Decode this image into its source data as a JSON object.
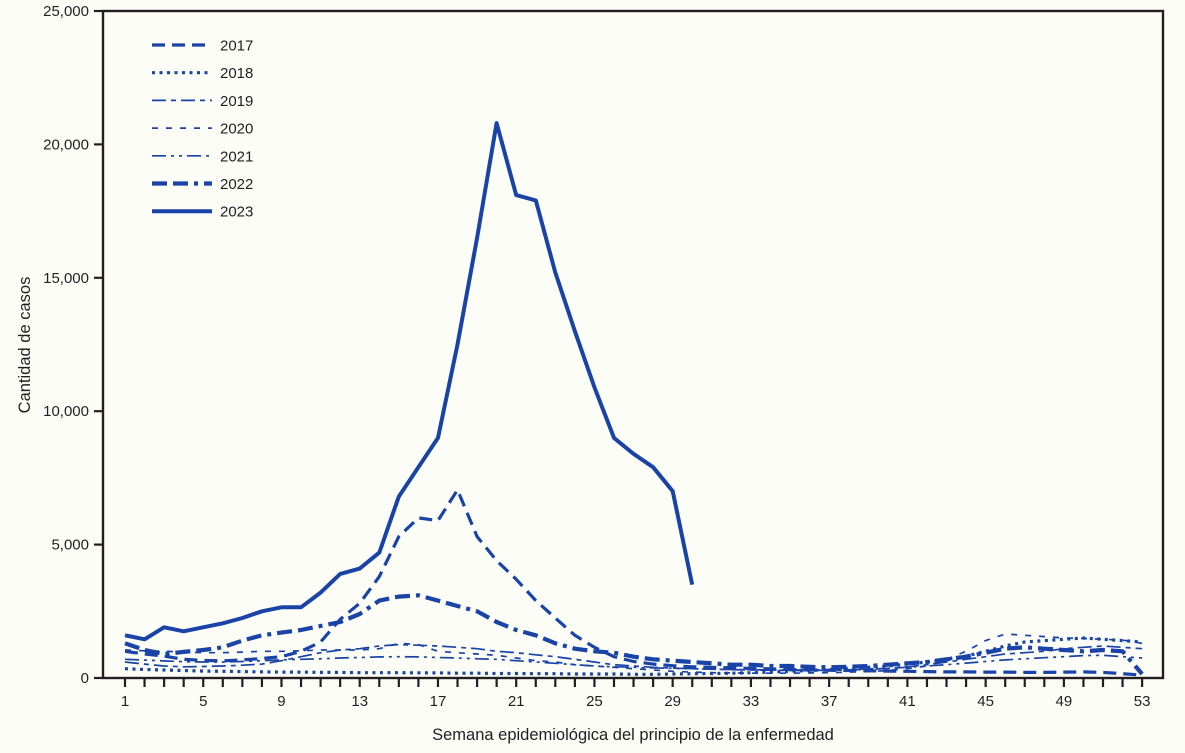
{
  "figure": {
    "background_color": "#fdfdf8",
    "accent_color": "#1a43a8",
    "axis_color": "#231f20"
  },
  "chart_data": {
    "type": "line",
    "title": "",
    "xlabel": "Semana epidemiológica del principio de la enfermedad",
    "ylabel": "Cantidad de casos",
    "grid": false,
    "legend_position": "top-left",
    "xlim": [
      1,
      53
    ],
    "ylim": [
      0,
      25000
    ],
    "x_tick_labels": [
      1,
      5,
      9,
      13,
      17,
      21,
      25,
      29,
      33,
      37,
      41,
      45,
      49,
      53
    ],
    "y_ticks": [
      0,
      5000,
      10000,
      15000,
      20000,
      25000
    ],
    "y_tick_labels": [
      "0",
      "5,000",
      "10,000",
      "15,000",
      "20,000",
      "25,000"
    ],
    "x": [
      1,
      2,
      3,
      4,
      5,
      6,
      7,
      8,
      9,
      10,
      11,
      12,
      13,
      14,
      15,
      16,
      17,
      18,
      19,
      20,
      21,
      22,
      23,
      24,
      25,
      26,
      27,
      28,
      29,
      30,
      31,
      32,
      33,
      34,
      35,
      36,
      37,
      38,
      39,
      40,
      41,
      42,
      43,
      44,
      45,
      46,
      47,
      48,
      49,
      50,
      51,
      52,
      53
    ],
    "line_color": "#1a43a8",
    "series": [
      {
        "name": "2017",
        "dash": "13 7",
        "width": 3.2,
        "values": [
          1000,
          900,
          820,
          700,
          660,
          640,
          680,
          730,
          800,
          1000,
          1350,
          2200,
          2800,
          3800,
          5300,
          6000,
          5900,
          7050,
          5300,
          4400,
          3700,
          2900,
          2250,
          1600,
          1150,
          800,
          620,
          520,
          460,
          420,
          400,
          380,
          360,
          340,
          320,
          300,
          290,
          280,
          270,
          260,
          250,
          240,
          230,
          230,
          220,
          220,
          210,
          210,
          220,
          230,
          210,
          160,
          110
        ]
      },
      {
        "name": "2018",
        "dash": "3 4.5",
        "width": 3.2,
        "values": [
          350,
          320,
          300,
          280,
          260,
          250,
          240,
          230,
          220,
          220,
          210,
          210,
          200,
          200,
          200,
          190,
          190,
          180,
          180,
          170,
          170,
          160,
          160,
          150,
          150,
          150,
          140,
          140,
          150,
          160,
          170,
          180,
          200,
          220,
          250,
          280,
          320,
          360,
          400,
          450,
          520,
          600,
          700,
          820,
          1000,
          1200,
          1350,
          1400,
          1450,
          1500,
          1450,
          1400,
          1350
        ]
      },
      {
        "name": "2019",
        "dash": "14 5 5 5",
        "width": 1.7,
        "values": [
          600,
          520,
          450,
          420,
          430,
          450,
          480,
          520,
          650,
          800,
          950,
          1050,
          1100,
          1200,
          1250,
          1230,
          1200,
          1150,
          1100,
          1000,
          950,
          870,
          800,
          700,
          600,
          500,
          450,
          400,
          370,
          350,
          330,
          310,
          300,
          290,
          280,
          280,
          290,
          300,
          320,
          360,
          420,
          500,
          600,
          700,
          800,
          900,
          950,
          1000,
          1100,
          1150,
          1200,
          1150,
          1100
        ]
      },
      {
        "name": "2020",
        "dash": "6 8",
        "width": 1.7,
        "values": [
          1050,
          1020,
          1000,
          980,
          950,
          950,
          970,
          1000,
          1000,
          1020,
          1050,
          1050,
          1050,
          1100,
          1300,
          1250,
          1000,
          950,
          900,
          850,
          750,
          650,
          600,
          500,
          450,
          400,
          350,
          300,
          250,
          220,
          200,
          190,
          180,
          180,
          180,
          190,
          200,
          220,
          240,
          280,
          350,
          450,
          700,
          1000,
          1400,
          1650,
          1600,
          1550,
          1500,
          1480,
          1450,
          1420,
          1300
        ]
      },
      {
        "name": "2021",
        "dash": "14 5 3 5 3 5",
        "width": 1.7,
        "values": [
          700,
          670,
          640,
          610,
          600,
          600,
          620,
          650,
          680,
          700,
          720,
          750,
          770,
          790,
          800,
          790,
          770,
          750,
          720,
          700,
          650,
          600,
          550,
          500,
          450,
          420,
          400,
          380,
          360,
          350,
          330,
          320,
          310,
          300,
          300,
          300,
          310,
          320,
          340,
          360,
          400,
          450,
          500,
          560,
          620,
          680,
          720,
          760,
          800,
          840,
          850,
          800,
          750
        ]
      },
      {
        "name": "2022",
        "dash": "15 6 15 6 4 6",
        "width": 4.2,
        "values": [
          1300,
          1050,
          900,
          980,
          1050,
          1150,
          1400,
          1600,
          1700,
          1800,
          1950,
          2100,
          2400,
          2900,
          3050,
          3100,
          2900,
          2700,
          2500,
          2100,
          1800,
          1600,
          1300,
          1100,
          1000,
          950,
          800,
          700,
          650,
          600,
          550,
          500,
          500,
          450,
          450,
          420,
          400,
          420,
          450,
          500,
          550,
          600,
          700,
          800,
          950,
          1100,
          1150,
          1100,
          1050,
          1000,
          1050,
          1000,
          150
        ]
      },
      {
        "name": "2023",
        "dash": "",
        "width": 4,
        "values": [
          1600,
          1450,
          1900,
          1750,
          1900,
          2050,
          2250,
          2500,
          2650,
          2650,
          3200,
          3900,
          4100,
          4700,
          6800,
          7900,
          9000,
          12500,
          16500,
          20800,
          18100,
          17900,
          15200,
          13000,
          10900,
          9000,
          8400,
          7900,
          7000,
          3500
        ]
      }
    ]
  }
}
